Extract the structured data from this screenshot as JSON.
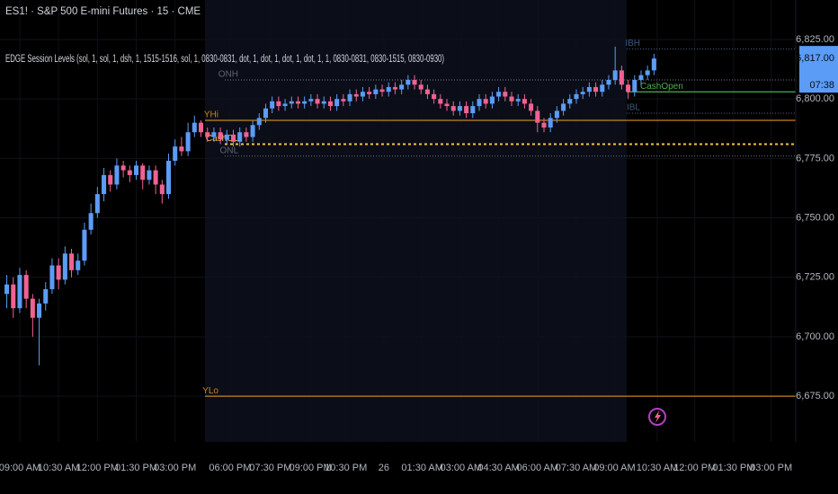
{
  "chart_data": {
    "type": "candlestick",
    "title": "ES1! · S&P 500 E-mini Futures · 15 · CME",
    "subtitle": "EDGE Session Levels (sol, 1, sol, 1, dsh, 1, 1515-1516, sol, 1, 0830-0831, dot, 1, dot, 1, dot, 1, dot, 1, 1, 0830-0831, 0830-1515, 0830-0930)",
    "up_color": "#5b9cf6",
    "down_color": "#f06292",
    "open": [
      6718,
      6722,
      6712,
      6726,
      6716,
      6708,
      6714,
      6720,
      6730,
      6724,
      6735,
      6728,
      6732,
      6745,
      6752,
      6760,
      6768,
      6764,
      6772,
      6770,
      6768,
      6772,
      6766,
      6770,
      6764,
      6760,
      6774,
      6780,
      6778,
      6786,
      6790,
      6786,
      6784,
      6786,
      6783,
      6785,
      6782,
      6786,
      6784,
      6789,
      6792,
      6796,
      6799,
      6797,
      6798,
      6799,
      6798,
      6799,
      6800,
      6798,
      6799,
      6797,
      6800,
      6799,
      6802,
      6801,
      6803,
      6802,
      6804,
      6803,
      6805,
      6804,
      6806,
      6808,
      6806,
      6804,
      6802,
      6800,
      6798,
      6797,
      6795,
      6797,
      6794,
      6797,
      6800,
      6798,
      6801,
      6803,
      6801,
      6799,
      6800,
      6798,
      6795,
      6790,
      6788,
      6792,
      6795,
      6798,
      6800,
      6802,
      6803,
      6805,
      6803,
      6806,
      6808,
      6812,
      6806,
      6803,
      6808,
      6810,
      6812
    ],
    "high": [
      6726,
      6725,
      6729,
      6728,
      6718,
      6716,
      6723,
      6733,
      6733,
      6738,
      6737,
      6735,
      6748,
      6756,
      6763,
      6771,
      6770,
      6775,
      6774,
      6772,
      6774,
      6773,
      6772,
      6772,
      6766,
      6777,
      6783,
      6784,
      6790,
      6793,
      6791,
      6788,
      6788,
      6788,
      6787,
      6787,
      6788,
      6788,
      6791,
      6794,
      6798,
      6801,
      6801,
      6800,
      6801,
      6801,
      6801,
      6802,
      6802,
      6801,
      6801,
      6802,
      6802,
      6804,
      6804,
      6805,
      6805,
      6806,
      6806,
      6807,
      6807,
      6808,
      6810,
      6810,
      6808,
      6806,
      6804,
      6802,
      6800,
      6799,
      6799,
      6799,
      6799,
      6802,
      6802,
      6803,
      6805,
      6805,
      6803,
      6802,
      6802,
      6800,
      6797,
      6792,
      6794,
      6797,
      6800,
      6802,
      6804,
      6805,
      6807,
      6807,
      6808,
      6810,
      6822,
      6814,
      6808,
      6810,
      6812,
      6814,
      6819
    ],
    "low": [
      6712,
      6708,
      6710,
      6712,
      6700,
      6688,
      6711,
      6718,
      6720,
      6722,
      6725,
      6726,
      6730,
      6743,
      6750,
      6757,
      6761,
      6762,
      6767,
      6765,
      6766,
      6762,
      6764,
      6760,
      6756,
      6758,
      6772,
      6776,
      6776,
      6784,
      6784,
      6782,
      6782,
      6781,
      6781,
      6780,
      6780,
      6782,
      6782,
      6787,
      6790,
      6794,
      6795,
      6795,
      6796,
      6796,
      6796,
      6797,
      6796,
      6796,
      6795,
      6795,
      6797,
      6797,
      6799,
      6799,
      6800,
      6800,
      6801,
      6801,
      6802,
      6802,
      6804,
      6804,
      6802,
      6800,
      6798,
      6796,
      6795,
      6793,
      6793,
      6792,
      6792,
      6795,
      6796,
      6796,
      6799,
      6799,
      6797,
      6797,
      6796,
      6793,
      6786,
      6786,
      6786,
      6790,
      6793,
      6796,
      6798,
      6800,
      6801,
      6801,
      6801,
      6804,
      6806,
      6804,
      6800,
      6801,
      6806,
      6808,
      6810
    ],
    "close": [
      6722,
      6712,
      6726,
      6716,
      6708,
      6714,
      6720,
      6730,
      6724,
      6735,
      6728,
      6732,
      6745,
      6752,
      6760,
      6768,
      6764,
      6772,
      6770,
      6768,
      6772,
      6766,
      6770,
      6764,
      6760,
      6774,
      6780,
      6778,
      6786,
      6790,
      6786,
      6784,
      6786,
      6783,
      6785,
      6782,
      6786,
      6784,
      6789,
      6792,
      6796,
      6799,
      6797,
      6798,
      6799,
      6798,
      6799,
      6800,
      6798,
      6799,
      6797,
      6800,
      6799,
      6802,
      6801,
      6803,
      6802,
      6804,
      6803,
      6805,
      6804,
      6806,
      6808,
      6806,
      6804,
      6802,
      6800,
      6798,
      6797,
      6795,
      6797,
      6794,
      6797,
      6800,
      6798,
      6801,
      6803,
      6801,
      6799,
      6800,
      6798,
      6795,
      6790,
      6788,
      6792,
      6795,
      6798,
      6800,
      6802,
      6803,
      6805,
      6803,
      6806,
      6808,
      6812,
      6806,
      6803,
      6808,
      6810,
      6812,
      6817
    ],
    "xlim": [
      -1.05,
      121.9
    ],
    "xticks": [
      {
        "value": 2,
        "label": "09:00 AM"
      },
      {
        "value": 8,
        "label": "10:30 AM"
      },
      {
        "value": 14,
        "label": "12:00 PM"
      },
      {
        "value": 20,
        "label": "01:30 PM"
      },
      {
        "value": 26,
        "label": "03:00 PM"
      },
      {
        "value": 34.5,
        "label": "06:00 PM"
      },
      {
        "value": 40.75,
        "label": "07:30 PM"
      },
      {
        "value": 46.9,
        "label": "09:00 PM"
      },
      {
        "value": 52.4,
        "label": "10:30 PM"
      },
      {
        "value": 58.25,
        "label": "26"
      },
      {
        "value": 64.2,
        "label": "01:30 AM"
      },
      {
        "value": 70.2,
        "label": "03:00 AM"
      },
      {
        "value": 76,
        "label": "04:30 AM"
      },
      {
        "value": 82,
        "label": "06:00 AM"
      },
      {
        "value": 88,
        "label": "07:30 AM"
      },
      {
        "value": 93.9,
        "label": "09:00 AM"
      },
      {
        "value": 100.5,
        "label": "10:30 AM"
      },
      {
        "value": 106.3,
        "label": "12:00 PM"
      },
      {
        "value": 112.3,
        "label": "01:30 PM"
      },
      {
        "value": 118.1,
        "label": "03:00 PM"
      }
    ],
    "ylim": [
      6655.8,
      6841.6
    ],
    "yticks": [
      {
        "value": 6675,
        "label": "6,675.00"
      },
      {
        "value": 6700,
        "label": "6,700.00"
      },
      {
        "value": 6725,
        "label": "6,725.00"
      },
      {
        "value": 6750,
        "label": "6,750.00"
      },
      {
        "value": 6775,
        "label": "6,775.00"
      },
      {
        "value": 6800,
        "label": "6,800.00"
      },
      {
        "value": 6825,
        "label": "6,825.00"
      }
    ],
    "levels": [
      {
        "name": "YHi",
        "value": 6791,
        "color": "#c8841a",
        "style": "solid"
      },
      {
        "name": "ONH",
        "value": 6808,
        "color": "#5d6475",
        "style": "dotted"
      },
      {
        "name": "CashCL",
        "value": 6781,
        "color": "#f5c242",
        "style": "dashed"
      },
      {
        "name": "ONL",
        "value": 6776,
        "color": "#5d6475",
        "style": "dotted"
      },
      {
        "name": "YLo",
        "value": 6675,
        "color": "#c8841a",
        "style": "solid"
      },
      {
        "name": "IBH",
        "value": 6821,
        "color": "#3d5a80",
        "style": "dotted"
      },
      {
        "name": "IBL",
        "value": 6794,
        "color": "#3d5a80",
        "style": "dotted"
      },
      {
        "name": "CashOpen",
        "value": 6803,
        "color": "#4caf50",
        "style": "solid"
      }
    ],
    "last_price": {
      "value": 6817,
      "label": "6,817.00",
      "countdown": "07:38"
    }
  }
}
